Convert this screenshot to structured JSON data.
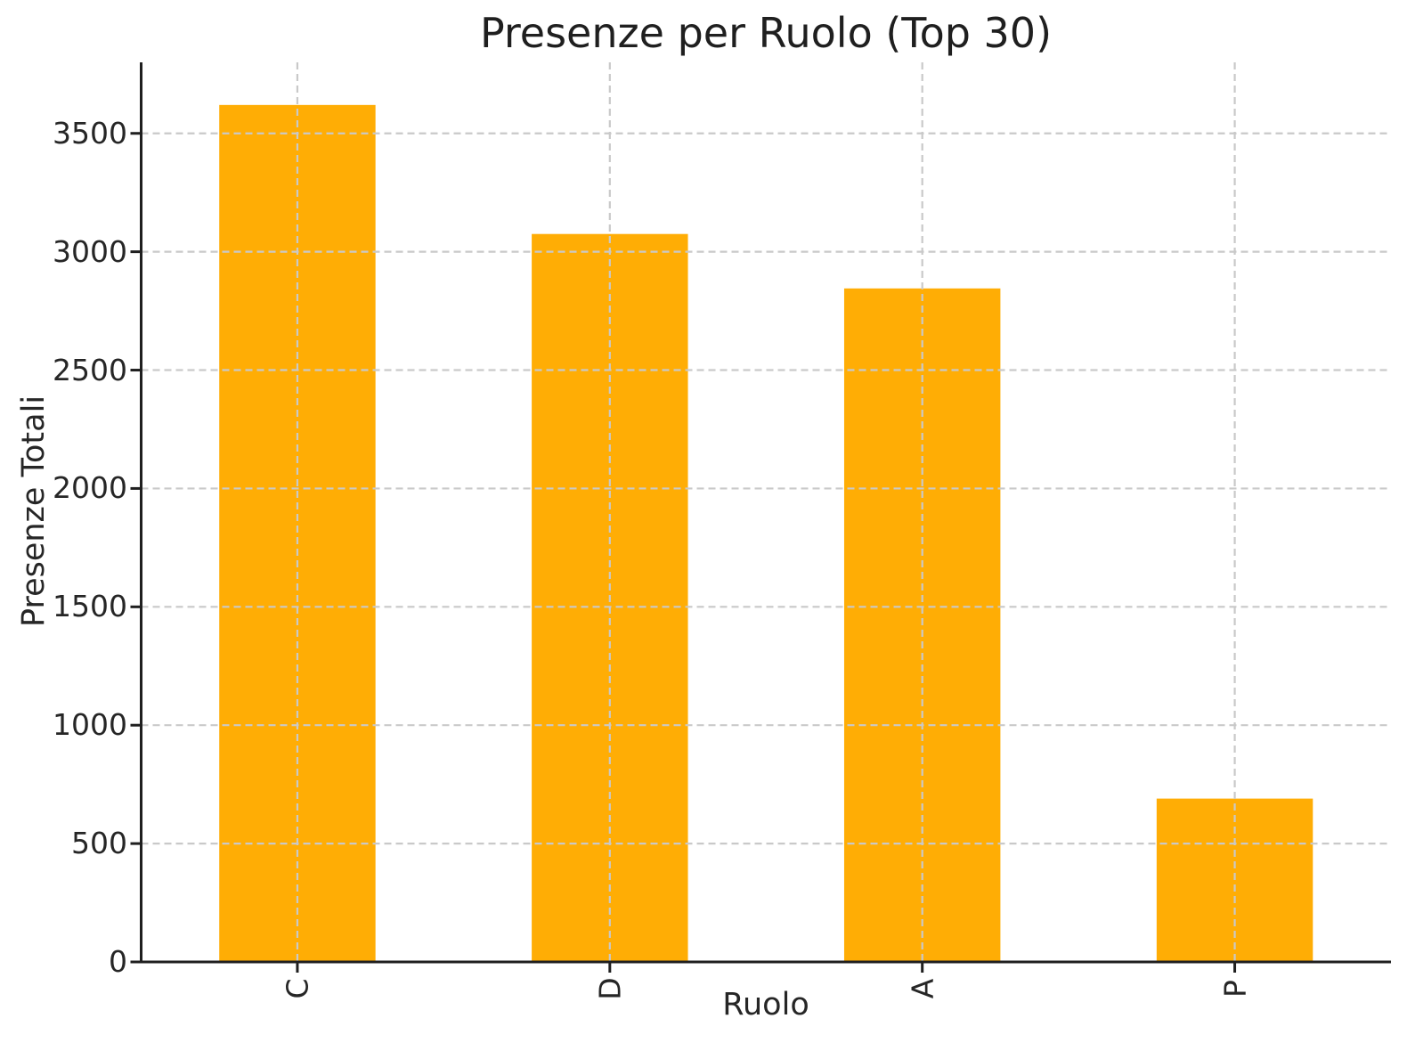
{
  "figure": {
    "background": "#FFFFFF"
  },
  "chart_data": {
    "type": "bar",
    "title": "Presenze per Ruolo (Top 30)",
    "xlabel": "Ruolo",
    "ylabel": "Presenze Totali",
    "categories": [
      "C",
      "D",
      "A",
      "P"
    ],
    "values": [
      3620,
      3075,
      2845,
      690
    ],
    "ylim": [
      0,
      3800
    ],
    "yticks": [
      0,
      500,
      1000,
      1500,
      2000,
      2500,
      3000,
      3500
    ],
    "bar_color": "#FFAD05",
    "grid": true,
    "grid_style": "dashed",
    "grid_color": "#C9C9C9",
    "axis_color": "#1F1F1F",
    "text_color": "#262626",
    "legend_position": "none",
    "x_tick_rotation": 90
  }
}
